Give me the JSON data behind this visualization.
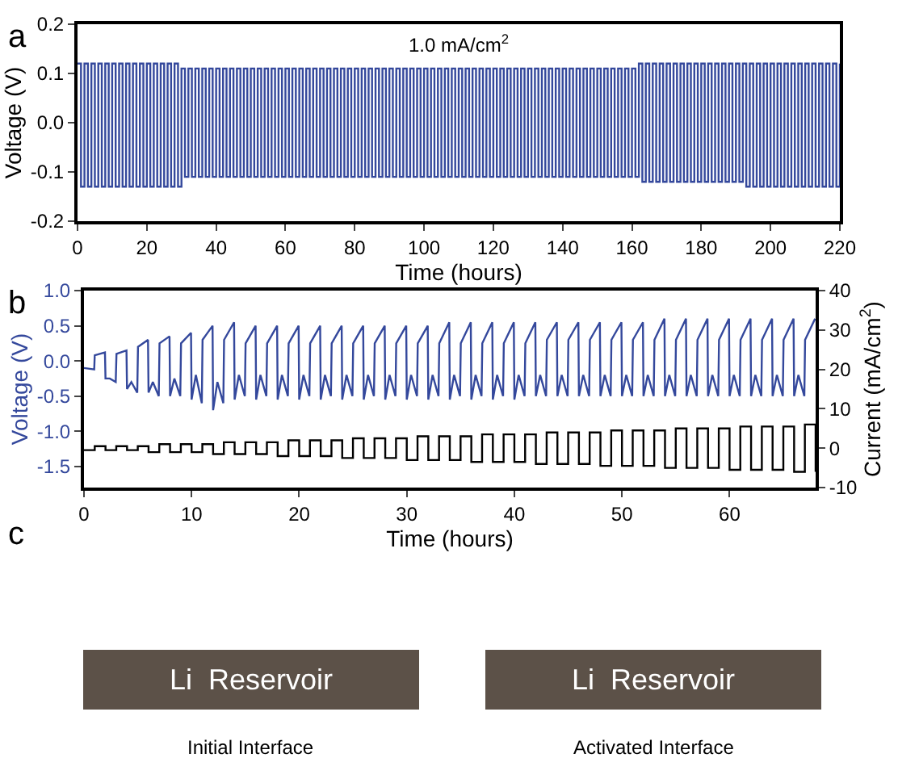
{
  "chart_data": [
    {
      "type": "step",
      "xlabel": "Time (hours)",
      "ylabel": "Voltage (V)",
      "xlim": [
        0,
        220
      ],
      "xticks": [
        0,
        20,
        40,
        60,
        80,
        100,
        120,
        140,
        160,
        180,
        200,
        220
      ],
      "ylim": [
        -0.2,
        0.2
      ],
      "yticks": [
        -0.2,
        -0.1,
        {
          "value": 0,
          "label": "0.0"
        },
        0.1,
        0.2
      ],
      "annotations": [
        "a",
        "1.0 mA/cm$^{2}$"
      ],
      "series": [
        {
          "color": "#34489c",
          "x": [
            0,
            1,
            2,
            3,
            4,
            5,
            6,
            7,
            8,
            9,
            10,
            11,
            12,
            13,
            14,
            15,
            16,
            17,
            18,
            19,
            20,
            21,
            22,
            23,
            24,
            25,
            26,
            27,
            28,
            29,
            30,
            31,
            32,
            33,
            34,
            35,
            36,
            37,
            38,
            39,
            40,
            41,
            42,
            43,
            44,
            45,
            46,
            47,
            48,
            49,
            50,
            51,
            52,
            53,
            54,
            55,
            56,
            57,
            58,
            59,
            60,
            61,
            62,
            63,
            64,
            65,
            66,
            67,
            68,
            69,
            70,
            71,
            72,
            73,
            74,
            75,
            76,
            77,
            78,
            79,
            80,
            81,
            82,
            83,
            84,
            85,
            86,
            87,
            88,
            89,
            90,
            91,
            92,
            93,
            94,
            95,
            96,
            97,
            98,
            99,
            100,
            101,
            102,
            103,
            104,
            105,
            106,
            107,
            108,
            109,
            110,
            111,
            112,
            113,
            114,
            115,
            116,
            117,
            118,
            119,
            120,
            121,
            122,
            123,
            124,
            125,
            126,
            127,
            128,
            129,
            130,
            131,
            132,
            133,
            134,
            135,
            136,
            137,
            138,
            139,
            140,
            141,
            142,
            143,
            144,
            145,
            146,
            147,
            148,
            149,
            150,
            151,
            152,
            153,
            154,
            155,
            156,
            157,
            158,
            159,
            160,
            161,
            162,
            163,
            164,
            165,
            166,
            167,
            168,
            169,
            170,
            171,
            172,
            173,
            174,
            175,
            176,
            177,
            178,
            179,
            180,
            181,
            182,
            183,
            184,
            185,
            186,
            187,
            188,
            189,
            190,
            191,
            192,
            193,
            194,
            195,
            196,
            197,
            198,
            199,
            200,
            201,
            202,
            203,
            204,
            205,
            206,
            207,
            208,
            209,
            210,
            211,
            212,
            213,
            214,
            215,
            216,
            217,
            218,
            219,
            220
          ],
          "values": [
            0.12,
            -0.13,
            0.12,
            -0.13,
            0.12,
            -0.13,
            0.12,
            -0.13,
            0.12,
            -0.13,
            0.12,
            -0.13,
            0.12,
            -0.13,
            0.12,
            -0.13,
            0.12,
            -0.13,
            0.12,
            -0.13,
            0.12,
            -0.13,
            0.12,
            -0.13,
            0.12,
            -0.13,
            0.12,
            -0.13,
            0.12,
            -0.13,
            0.11,
            -0.11,
            0.11,
            -0.11,
            0.11,
            -0.11,
            0.11,
            -0.11,
            0.11,
            -0.11,
            0.11,
            -0.11,
            0.11,
            -0.11,
            0.11,
            -0.11,
            0.11,
            -0.11,
            0.11,
            -0.11,
            0.11,
            -0.11,
            0.11,
            -0.11,
            0.11,
            -0.11,
            0.11,
            -0.11,
            0.11,
            -0.11,
            0.11,
            -0.11,
            0.11,
            -0.11,
            0.11,
            -0.11,
            0.11,
            -0.11,
            0.11,
            -0.11,
            0.11,
            -0.11,
            0.11,
            -0.11,
            0.11,
            -0.11,
            0.11,
            -0.11,
            0.11,
            -0.11,
            0.11,
            -0.11,
            0.11,
            -0.11,
            0.11,
            -0.11,
            0.11,
            -0.11,
            0.11,
            -0.11,
            0.11,
            -0.11,
            0.11,
            -0.11,
            0.11,
            -0.11,
            0.11,
            -0.11,
            0.11,
            -0.11,
            0.11,
            -0.11,
            0.11,
            -0.11,
            0.11,
            -0.11,
            0.11,
            -0.11,
            0.11,
            -0.11,
            0.11,
            -0.11,
            0.11,
            -0.11,
            0.11,
            -0.11,
            0.11,
            -0.11,
            0.11,
            -0.11,
            0.11,
            -0.11,
            0.11,
            -0.11,
            0.11,
            -0.11,
            0.11,
            -0.11,
            0.11,
            -0.11,
            0.11,
            -0.11,
            0.11,
            -0.11,
            0.11,
            -0.11,
            0.11,
            -0.11,
            0.11,
            -0.11,
            0.11,
            -0.11,
            0.11,
            -0.11,
            0.11,
            -0.11,
            0.11,
            -0.11,
            0.11,
            -0.11,
            0.11,
            -0.11,
            0.11,
            -0.11,
            0.11,
            -0.11,
            0.11,
            -0.11,
            0.11,
            -0.11,
            0.11,
            -0.11,
            0.12,
            -0.12,
            0.12,
            -0.12,
            0.12,
            -0.12,
            0.12,
            -0.12,
            0.12,
            -0.12,
            0.12,
            -0.12,
            0.12,
            -0.12,
            0.12,
            -0.12,
            0.12,
            -0.12,
            0.12,
            -0.12,
            0.12,
            -0.12,
            0.12,
            -0.12,
            0.12,
            -0.12,
            0.12,
            -0.12,
            0.12,
            -0.12,
            0.12,
            -0.13,
            0.12,
            -0.13,
            0.12,
            -0.13,
            0.12,
            -0.13,
            0.12,
            -0.13,
            0.12,
            -0.13,
            0.12,
            -0.13,
            0.12,
            -0.13,
            0.12,
            -0.13,
            0.12,
            -0.13,
            0.12,
            -0.13,
            0.12,
            -0.13,
            0.12,
            -0.13,
            0.12,
            -0.13,
            0.12
          ]
        }
      ]
    },
    {
      "type": "line",
      "xlabel": "Time (hours)",
      "ylabel": "Voltage (V)",
      "y2label": "Current (mA/cm$^{2}$)",
      "xlim": [
        0,
        68
      ],
      "xticks": [
        0,
        10,
        20,
        30,
        40,
        50,
        60
      ],
      "ylim": [
        -1.8,
        1.0
      ],
      "yticks": [
        -1.5,
        {
          "value": -1,
          "label": "-1.0"
        },
        -0.5,
        {
          "value": 0,
          "label": "0.0"
        },
        0.5,
        {
          "value": 1,
          "label": "1.0"
        }
      ],
      "y2lim": [
        -10,
        40
      ],
      "y2ticks": [
        -10,
        0,
        10,
        20,
        30,
        40
      ],
      "annotations": [
        "b"
      ],
      "series": [
        {
          "color": "#34489c",
          "x": [
            0,
            0.95,
            1,
            1.95,
            2,
            2.4,
            2.95,
            3.02,
            3.95,
            4,
            4.4,
            4.95,
            5.02,
            5.95,
            6,
            6.4,
            6.95,
            7.02,
            7.95,
            8,
            8.4,
            8.95,
            9.02,
            9.95,
            10,
            10.4,
            10.95,
            11.02,
            11.95,
            12,
            12.4,
            12.95,
            13.02,
            13.95,
            14,
            14.4,
            14.95,
            15.02,
            15.95,
            16,
            16.4,
            16.95,
            17.02,
            17.95,
            18,
            18.4,
            18.95,
            19.02,
            19.95,
            20,
            20.4,
            20.95,
            21.02,
            21.95,
            22,
            22.4,
            22.95,
            23.02,
            23.95,
            24,
            24.4,
            24.95,
            25.02,
            25.95,
            26,
            26.4,
            26.95,
            27.02,
            27.95,
            28,
            28.4,
            28.95,
            29.02,
            29.95,
            30,
            30.4,
            30.95,
            31.02,
            31.95,
            32,
            32.4,
            32.95,
            33.02,
            33.95,
            34,
            34.4,
            34.95,
            35.02,
            35.95,
            36,
            36.4,
            36.95,
            37.02,
            37.95,
            38,
            38.4,
            38.95,
            39.02,
            39.95,
            40,
            40.4,
            40.95,
            41.02,
            41.95,
            42,
            42.4,
            42.95,
            43.02,
            43.95,
            44,
            44.4,
            44.95,
            45.02,
            45.95,
            46,
            46.4,
            46.95,
            47.02,
            47.95,
            48,
            48.4,
            48.95,
            49.02,
            49.95,
            50,
            50.4,
            50.95,
            51.02,
            51.95,
            52,
            52.4,
            52.95,
            53.02,
            53.95,
            54,
            54.4,
            54.95,
            55.02,
            55.95,
            56,
            56.4,
            56.95,
            57.02,
            57.95,
            58,
            58.4,
            58.95,
            59.02,
            59.95,
            60,
            60.4,
            60.95,
            61.02,
            61.95,
            62,
            62.4,
            62.95,
            63.02,
            63.95,
            64,
            64.4,
            64.95,
            65.02,
            65.95,
            66,
            66.4,
            66.95,
            67.02,
            67.95
          ],
          "values": [
            -0.1,
            -0.12,
            0.08,
            0.12,
            -0.25,
            -0.25,
            -0.3,
            0.1,
            0.15,
            -0.4,
            -0.3,
            -0.45,
            0.2,
            0.3,
            -0.45,
            -0.3,
            -0.5,
            0.25,
            0.35,
            -0.5,
            -0.25,
            -0.5,
            0.25,
            0.4,
            -0.55,
            -0.2,
            -0.6,
            0.3,
            0.5,
            -0.7,
            -0.3,
            -0.6,
            0.3,
            0.55,
            -0.55,
            -0.2,
            -0.5,
            0.25,
            0.5,
            -0.55,
            -0.2,
            -0.5,
            0.25,
            0.5,
            -0.55,
            -0.2,
            -0.5,
            0.25,
            0.5,
            -0.55,
            -0.2,
            -0.5,
            0.25,
            0.5,
            -0.55,
            -0.2,
            -0.5,
            0.25,
            0.5,
            -0.55,
            -0.2,
            -0.5,
            0.25,
            0.5,
            -0.55,
            -0.2,
            -0.5,
            0.25,
            0.5,
            -0.55,
            -0.2,
            -0.5,
            0.25,
            0.5,
            -0.55,
            -0.2,
            -0.5,
            0.25,
            0.5,
            -0.55,
            -0.2,
            -0.5,
            0.25,
            0.55,
            -0.55,
            -0.2,
            -0.5,
            0.25,
            0.55,
            -0.55,
            -0.2,
            -0.5,
            0.25,
            0.55,
            -0.55,
            -0.2,
            -0.5,
            0.25,
            0.55,
            -0.55,
            -0.2,
            -0.5,
            0.25,
            0.55,
            -0.5,
            -0.2,
            -0.5,
            0.3,
            0.55,
            -0.5,
            -0.2,
            -0.5,
            0.3,
            0.55,
            -0.5,
            -0.2,
            -0.5,
            0.3,
            0.55,
            -0.5,
            -0.2,
            -0.5,
            0.3,
            0.55,
            -0.5,
            -0.2,
            -0.5,
            0.3,
            0.55,
            -0.5,
            -0.2,
            -0.5,
            0.3,
            0.6,
            -0.5,
            -0.2,
            -0.5,
            0.3,
            0.6,
            -0.5,
            -0.2,
            -0.5,
            0.3,
            0.6,
            -0.5,
            -0.2,
            -0.5,
            0.3,
            0.6,
            -0.5,
            -0.2,
            -0.5,
            0.3,
            0.6,
            -0.5,
            -0.2,
            -0.5,
            0.3,
            0.6,
            -0.5,
            -0.2,
            -0.5,
            0.3,
            0.6,
            -0.5,
            -0.2,
            -0.5,
            0.3,
            0.6
          ]
        },
        {
          "color": "#000000",
          "type": "step",
          "axis": "y2",
          "x": [
            0,
            1,
            2,
            3,
            4,
            5,
            6,
            7,
            8,
            9,
            10,
            11,
            12,
            13,
            14,
            15,
            16,
            17,
            18,
            19,
            20,
            21,
            22,
            23,
            24,
            25,
            26,
            27,
            28,
            29,
            30,
            31,
            32,
            33,
            34,
            35,
            36,
            37,
            38,
            39,
            40,
            41,
            42,
            43,
            44,
            45,
            46,
            47,
            48,
            49,
            50,
            51,
            52,
            53,
            54,
            55,
            56,
            57,
            58,
            59,
            60,
            61,
            62,
            63,
            64,
            65,
            66,
            67,
            68
          ],
          "values": [
            -0.5,
            0.5,
            -0.5,
            0.5,
            -0.5,
            0.5,
            -1,
            1,
            -1,
            1,
            -1,
            1,
            -1.5,
            1.5,
            -1.5,
            1.5,
            -1.5,
            1.5,
            -2,
            2,
            -2,
            2,
            -2,
            2,
            -2.5,
            2.5,
            -2.5,
            2.5,
            -2.5,
            2.5,
            -3,
            3,
            -3,
            3,
            -3,
            3,
            -3.5,
            3.5,
            -3.5,
            3.5,
            -3.5,
            3.5,
            -4,
            4,
            -4,
            4,
            -4,
            4,
            -4.5,
            4.5,
            -4.5,
            4.5,
            -4.5,
            4.5,
            -5,
            5,
            -5,
            5,
            -5,
            5,
            -5.5,
            5.5,
            -5.5,
            5.5,
            -5.5,
            5.5,
            -6,
            6,
            -6
          ]
        }
      ]
    },
    {
      "type": "other",
      "annotations": [
        "c",
        "Li  Reservoir",
        "Li  Reservoir",
        "Initial Interface",
        "Activated Interface"
      ]
    }
  ]
}
